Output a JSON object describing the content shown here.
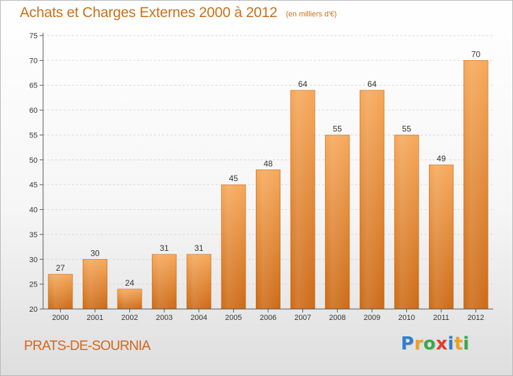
{
  "title": "Achats et Charges Externes 2000 à 2012",
  "unit": "(en milliers d'€)",
  "commune": "PRATS-DE-SOURNIA",
  "logo": {
    "letters": [
      "P",
      "r",
      "o",
      "x",
      "i",
      "t",
      "i"
    ],
    "colors": [
      "#2e7fd1",
      "#f0a020",
      "#3aa84a",
      "#e83a2a",
      "#2e7fd1",
      "#f0a020",
      "#3aa84a"
    ]
  },
  "colors": {
    "bar_top": "#f6a85a",
    "bar_bottom": "#cc6a16",
    "text_accent": "#c8701a"
  },
  "chart_data": {
    "type": "bar",
    "title": "Achats et Charges Externes 2000 à 2012",
    "subtitle": "(en milliers d'€)",
    "categories": [
      "2000",
      "2001",
      "2002",
      "2003",
      "2004",
      "2005",
      "2006",
      "2007",
      "2008",
      "2009",
      "2010",
      "2011",
      "2012"
    ],
    "values": [
      27,
      30,
      24,
      31,
      31,
      45,
      48,
      64,
      55,
      64,
      55,
      49,
      70
    ],
    "ylim": [
      20,
      75
    ],
    "yticks": [
      20,
      25,
      30,
      35,
      40,
      45,
      50,
      55,
      60,
      65,
      70,
      75
    ],
    "grid": true,
    "legend": "none",
    "data_labels": true
  }
}
